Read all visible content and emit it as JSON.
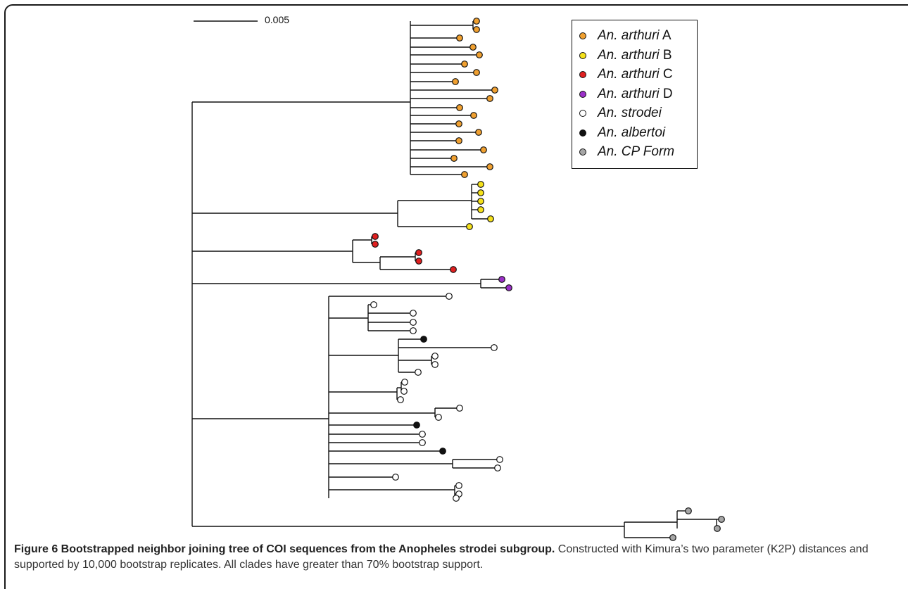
{
  "scale_bar": {
    "label": "0.005"
  },
  "legend": [
    {
      "italic": "An. arthuri",
      "suffix": " A",
      "color": "#f0a030"
    },
    {
      "italic": "An. arthuri",
      "suffix": " B",
      "color": "#f5e11a"
    },
    {
      "italic": "An. arthuri",
      "suffix": " C",
      "color": "#e02020"
    },
    {
      "italic": "An. arthuri",
      "suffix": " D",
      "color": "#9b30c8"
    },
    {
      "italic": "An. strodei",
      "suffix": "",
      "color": "#ffffff"
    },
    {
      "italic": "An. albertoi",
      "suffix": "",
      "color": "#111111"
    },
    {
      "italic": "An. CP Form",
      "suffix": "",
      "color": "#a6a6a6"
    }
  ],
  "caption": {
    "title": "Figure 6 Bootstrapped neighbor joining tree of COI sequences from the Anopheles strodei subgroup.",
    "body": " Constructed with Kimura’s two parameter (K2P) distances and supported by 10,000 bootstrap replicates. All clades have greater than 70% bootstrap support."
  }
}
